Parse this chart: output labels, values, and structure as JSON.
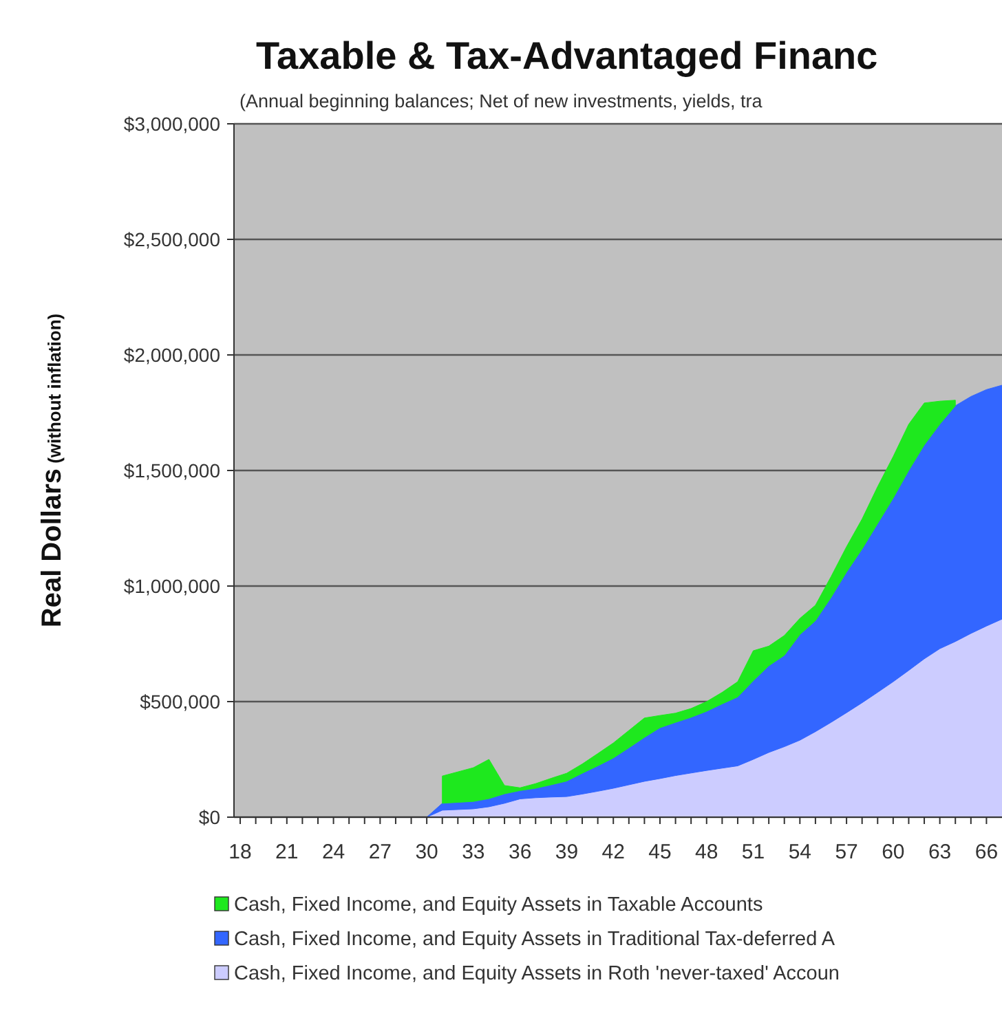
{
  "chart_data": {
    "type": "area",
    "stacked": true,
    "title": "Taxable & Tax-Advantaged Financ",
    "subtitle": "(Annual beginning balances; Net of new investments, yields, tra",
    "ylabel": "Real Dollars (without inflation)",
    "x": [
      30,
      31,
      32,
      33,
      34,
      35,
      36,
      37,
      38,
      39,
      40,
      41,
      42,
      43,
      44,
      45,
      46,
      47,
      48,
      49,
      50,
      51,
      52,
      53,
      54,
      55,
      56,
      57,
      58,
      59,
      60,
      61,
      62,
      63,
      64,
      65,
      66,
      67
    ],
    "series": [
      {
        "name": "Cash, Fixed Income, and Equity Assets in Roth 'never-taxed' Accoun",
        "color": "#ccccff",
        "values": [
          0,
          30000,
          33000,
          36000,
          45000,
          60000,
          79000,
          84000,
          87000,
          89000,
          100000,
          112000,
          125000,
          140000,
          155000,
          167000,
          180000,
          191000,
          202000,
          212000,
          222000,
          250000,
          280000,
          305000,
          333000,
          370000,
          410000,
          452000,
          495000,
          540000,
          586000,
          635000,
          685000,
          729000,
          760000,
          795000,
          827000,
          857000
        ]
      },
      {
        "name": "Cash, Fixed Income, and Equity Assets in Traditional Tax-deferred A",
        "color": "#3366ff",
        "values": [
          0,
          30000,
          31000,
          32000,
          35000,
          41000,
          36000,
          41000,
          53000,
          67000,
          90000,
          110000,
          131000,
          160000,
          190000,
          220000,
          230000,
          241000,
          256000,
          278000,
          298000,
          340000,
          375000,
          395000,
          457000,
          480000,
          540000,
          608000,
          665000,
          730000,
          794000,
          865000,
          925000,
          971000,
          1020000,
          1025000,
          1023000,
          1012000
        ]
      },
      {
        "name": "Cash, Fixed Income, and Equity Assets in Taxable Accounts",
        "color": "#1ee81e",
        "values": [
          null,
          118000,
          132000,
          146000,
          170000,
          36000,
          12000,
          20000,
          28000,
          34000,
          40000,
          53000,
          65000,
          75000,
          84000,
          53000,
          40000,
          38000,
          42000,
          50000,
          66000,
          130000,
          85000,
          86000,
          70000,
          67000,
          90000,
          110000,
          130000,
          160000,
          180000,
          200000,
          182000,
          100000,
          24000,
          null,
          null,
          null
        ]
      }
    ],
    "xlim": [
      17.6,
      67
    ],
    "xticks": [
      18,
      {
        "value": 19,
        "label": null
      },
      {
        "value": 20,
        "label": null
      },
      21,
      {
        "value": 22,
        "label": null
      },
      {
        "value": 23,
        "label": null
      },
      24,
      {
        "value": 25,
        "label": null
      },
      {
        "value": 26,
        "label": null
      },
      27,
      {
        "value": 28,
        "label": null
      },
      {
        "value": 29,
        "label": null
      },
      30,
      {
        "value": 31,
        "label": null
      },
      {
        "value": 32,
        "label": null
      },
      33,
      {
        "value": 34,
        "label": null
      },
      {
        "value": 35,
        "label": null
      },
      36,
      {
        "value": 37,
        "label": null
      },
      {
        "value": 38,
        "label": null
      },
      39,
      {
        "value": 40,
        "label": null
      },
      {
        "value": 41,
        "label": null
      },
      42,
      {
        "value": 43,
        "label": null
      },
      {
        "value": 44,
        "label": null
      },
      45,
      {
        "value": 46,
        "label": null
      },
      {
        "value": 47,
        "label": null
      },
      48,
      {
        "value": 49,
        "label": null
      },
      {
        "value": 50,
        "label": null
      },
      51,
      {
        "value": 52,
        "label": null
      },
      {
        "value": 53,
        "label": null
      },
      54,
      {
        "value": 55,
        "label": null
      },
      {
        "value": 56,
        "label": null
      },
      57,
      {
        "value": 58,
        "label": null
      },
      {
        "value": 59,
        "label": null
      },
      60,
      {
        "value": 61,
        "label": null
      },
      {
        "value": 62,
        "label": null
      },
      63,
      {
        "value": 64,
        "label": null
      },
      {
        "value": 65,
        "label": null
      },
      66
    ],
    "ylim": [
      0,
      3000000
    ],
    "yticks": [
      {
        "value": 0,
        "label": "$0"
      },
      {
        "value": 500000,
        "label": "$500,000"
      },
      {
        "value": 1000000,
        "label": "$1,000,000"
      },
      {
        "value": 1500000,
        "label": "$1,500,000"
      },
      {
        "value": 2000000,
        "label": "$2,000,000"
      },
      {
        "value": 2500000,
        "label": "$2,500,000"
      },
      {
        "value": 3000000,
        "label": "$3,000,000"
      }
    ],
    "grid": "y",
    "legend": "bottom"
  }
}
